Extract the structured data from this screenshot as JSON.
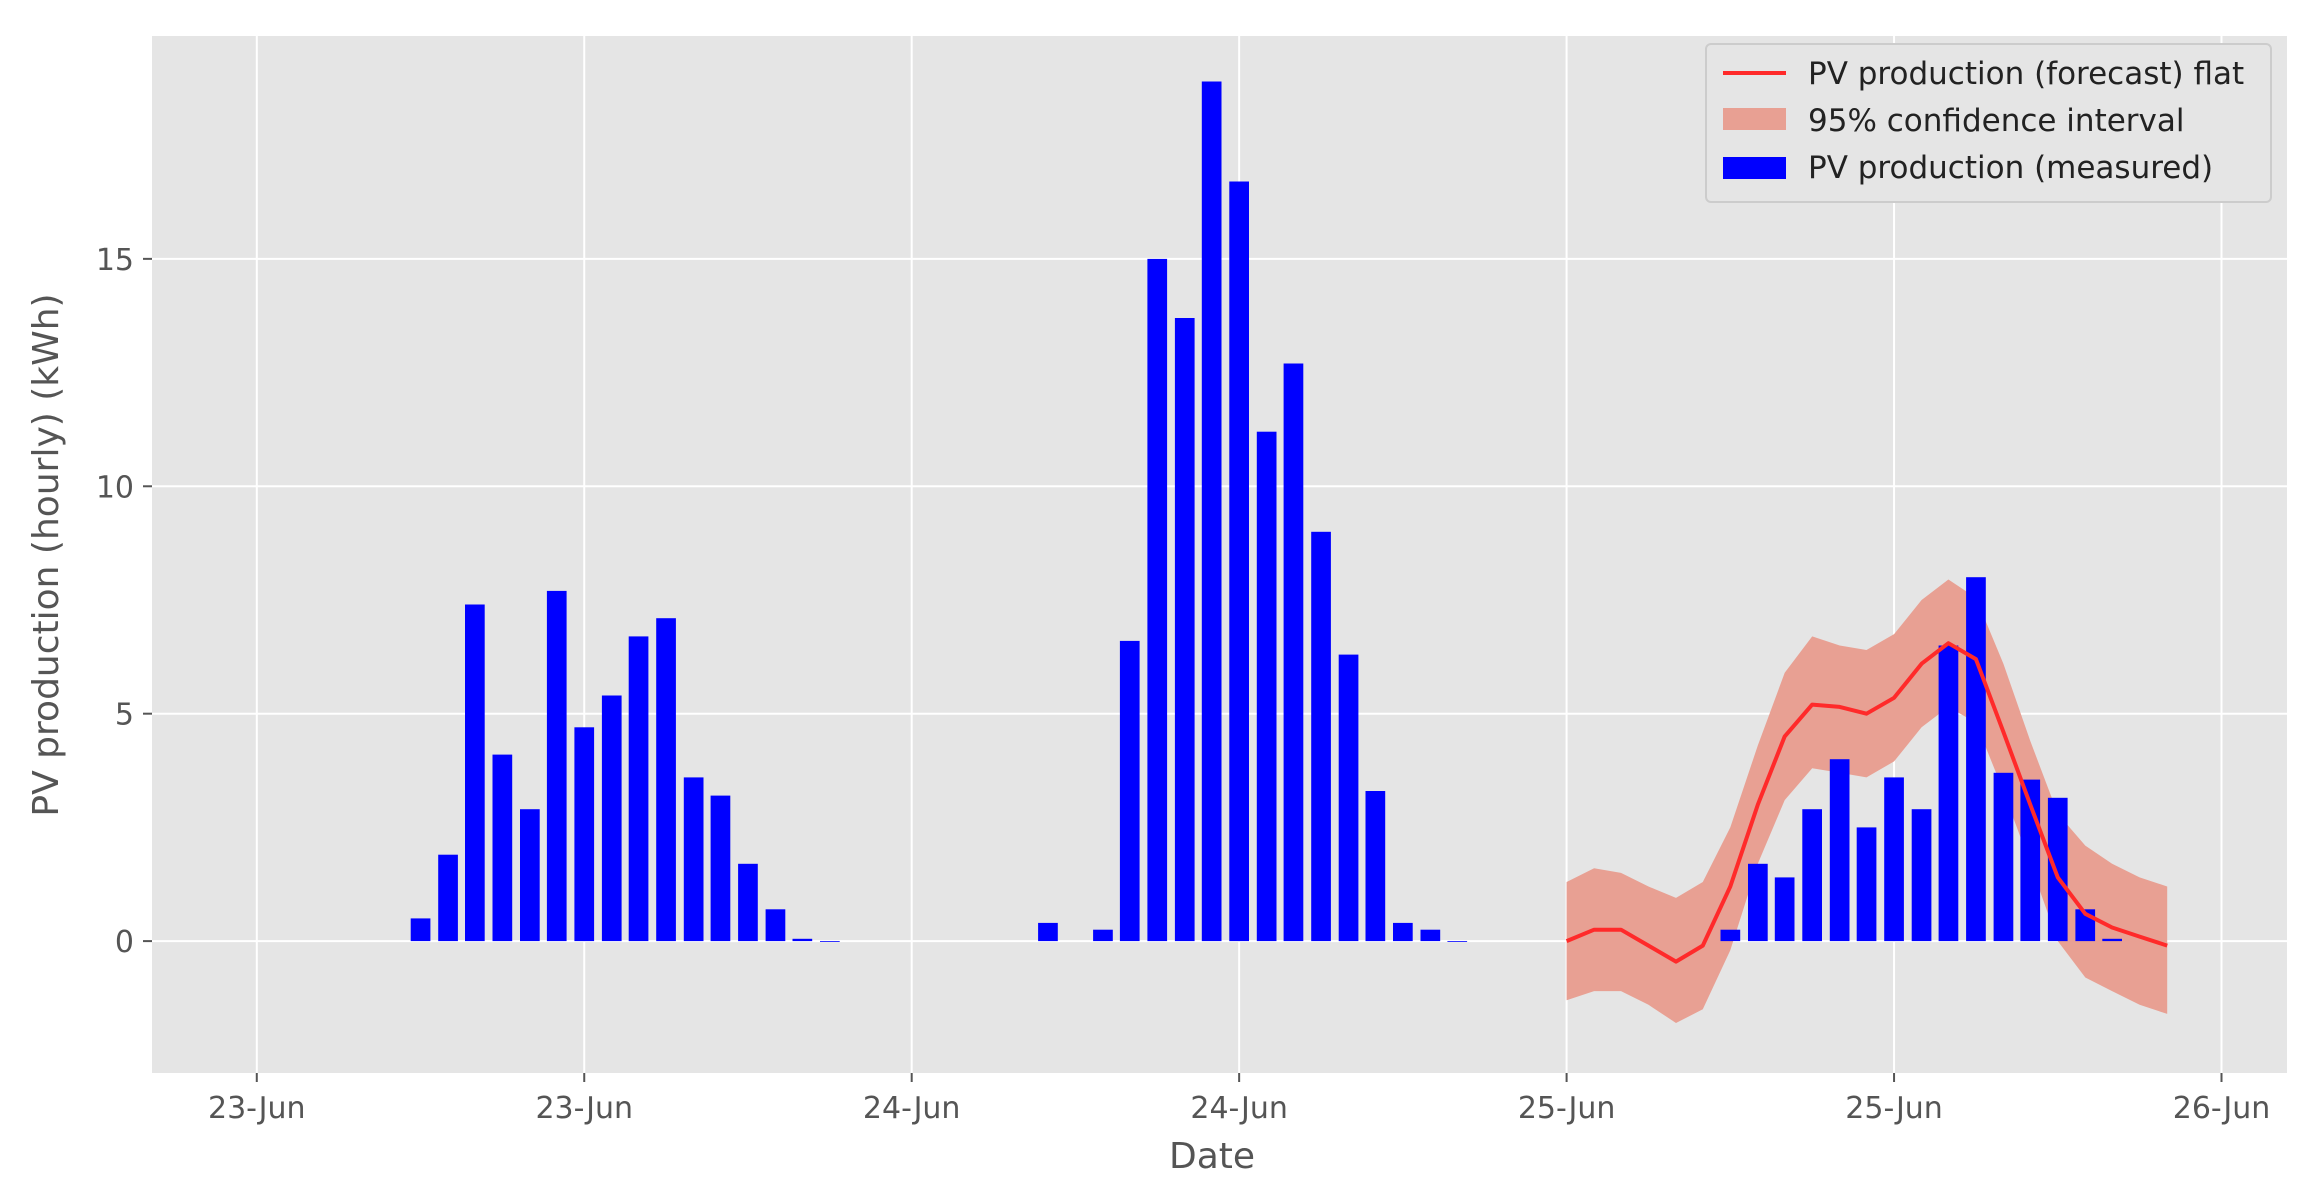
{
  "chart_data": {
    "type": "bar",
    "xlabel": "Date",
    "ylabel": "PV production (hourly) (kWh)",
    "ylim": [
      -2.9,
      19.9
    ],
    "yticks": [
      0,
      5,
      10,
      15
    ],
    "xticks": [
      {
        "pos": -1.0,
        "label": "23-Jun"
      },
      {
        "pos": -0.5,
        "label": "23-Jun"
      },
      {
        "pos": 0.0,
        "label": "24-Jun"
      },
      {
        "pos": 0.5,
        "label": "24-Jun"
      },
      {
        "pos": 1.0,
        "label": "25-Jun"
      },
      {
        "pos": 1.5,
        "label": "25-Jun"
      },
      {
        "pos": 2.0,
        "label": "26-Jun"
      }
    ],
    "xlim": [
      -1.16,
      2.1
    ],
    "grid": true,
    "legend_position": "top-right",
    "colors": {
      "background": "#e5e5e5",
      "grid": "#ffffff",
      "bar": "#0000ff",
      "forecast": "#ff2a2a",
      "interval": "#e8a093"
    },
    "series": [
      {
        "name": "PV production (measured)",
        "type": "bar",
        "bar_width": 0.0301,
        "x": [
          -0.75,
          -0.708,
          -0.667,
          -0.625,
          -0.583,
          -0.542,
          -0.5,
          -0.458,
          -0.417,
          -0.375,
          -0.333,
          -0.292,
          -0.25,
          -0.208,
          -0.167,
          -0.125,
          0.208,
          0.292,
          0.333,
          0.375,
          0.417,
          0.458,
          0.5,
          0.542,
          0.583,
          0.625,
          0.667,
          0.708,
          0.75,
          0.792,
          0.833,
          1.25,
          1.292,
          1.333,
          1.375,
          1.417,
          1.458,
          1.5,
          1.542,
          1.583,
          1.625,
          1.667,
          1.708,
          1.75,
          1.792,
          1.833
        ],
        "values": [
          0.5,
          1.9,
          7.4,
          4.1,
          2.9,
          7.7,
          4.7,
          5.4,
          6.7,
          7.1,
          3.6,
          3.2,
          1.7,
          0.7,
          0.05,
          0.0,
          0.4,
          0.25,
          6.6,
          15.0,
          13.7,
          18.9,
          16.7,
          11.2,
          12.7,
          9.0,
          6.3,
          3.3,
          0.4,
          0.25,
          0.0,
          0.25,
          1.7,
          1.4,
          2.9,
          4.0,
          2.5,
          3.6,
          2.9,
          6.5,
          8.0,
          3.7,
          3.55,
          3.15,
          0.7,
          0.05
        ]
      },
      {
        "name": "PV production (forecast) flat",
        "type": "line",
        "x": [
          1.0,
          1.042,
          1.083,
          1.125,
          1.167,
          1.208,
          1.25,
          1.292,
          1.333,
          1.375,
          1.417,
          1.458,
          1.5,
          1.542,
          1.583,
          1.625,
          1.667,
          1.708,
          1.75,
          1.792,
          1.833,
          1.875,
          1.917
        ],
        "values": [
          0.0,
          0.25,
          0.25,
          -0.1,
          -0.45,
          -0.1,
          1.2,
          3.0,
          4.5,
          5.2,
          5.15,
          5.0,
          5.35,
          6.1,
          6.55,
          6.2,
          4.6,
          3.0,
          1.4,
          0.6,
          0.3,
          0.1,
          -0.1
        ]
      },
      {
        "name": "95% confidence interval",
        "type": "band",
        "x": [
          1.0,
          1.042,
          1.083,
          1.125,
          1.167,
          1.208,
          1.25,
          1.292,
          1.333,
          1.375,
          1.417,
          1.458,
          1.5,
          1.542,
          1.583,
          1.625,
          1.667,
          1.708,
          1.75,
          1.792,
          1.833,
          1.875,
          1.917
        ],
        "upper": [
          1.3,
          1.6,
          1.5,
          1.2,
          0.95,
          1.3,
          2.5,
          4.3,
          5.9,
          6.7,
          6.5,
          6.4,
          6.75,
          7.5,
          7.95,
          7.55,
          6.1,
          4.4,
          2.8,
          2.1,
          1.7,
          1.4,
          1.2
        ],
        "lower": [
          -1.3,
          -1.1,
          -1.1,
          -1.4,
          -1.8,
          -1.5,
          -0.2,
          1.7,
          3.1,
          3.8,
          3.7,
          3.6,
          3.95,
          4.7,
          5.15,
          4.8,
          3.3,
          1.7,
          0.0,
          -0.8,
          -1.1,
          -1.4,
          -1.6
        ]
      }
    ]
  }
}
